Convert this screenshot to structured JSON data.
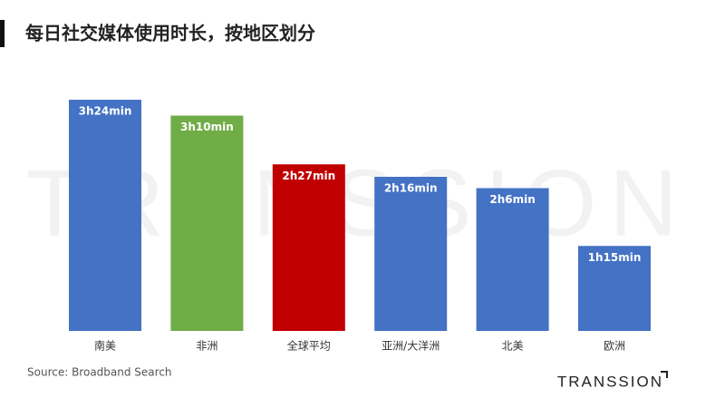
{
  "chart_data": {
    "type": "bar",
    "title": "每日社交媒体使用时长，按地区划分",
    "categories": [
      "南美",
      "非洲",
      "全球平均",
      "亚洲/大洋洲",
      "北美",
      "欧洲"
    ],
    "values": [
      204,
      190,
      147,
      136,
      126,
      75
    ],
    "value_labels": [
      "3h24min",
      "3h10min",
      "2h27min",
      "2h16min",
      "2h6min",
      "1h15min"
    ],
    "colors": [
      "#4472c4",
      "#70ad47",
      "#c00000",
      "#4472c4",
      "#4472c4",
      "#4472c4"
    ],
    "source": "Source: Broadband Search",
    "watermark": "TRANSSION",
    "logo": "TRANSSION"
  }
}
